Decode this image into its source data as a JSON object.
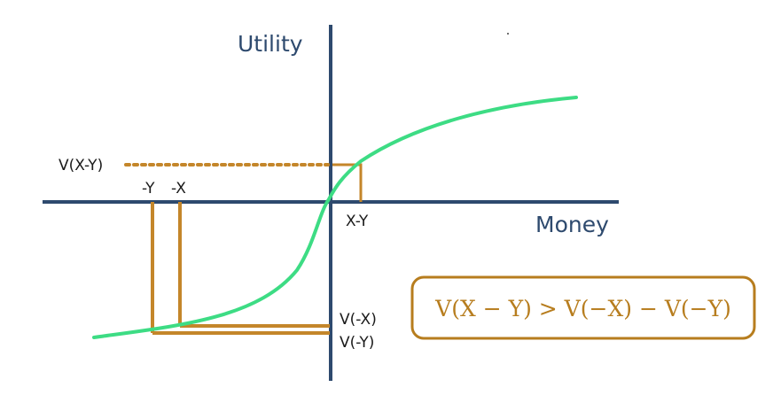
{
  "axes": {
    "y_title": "Utility",
    "x_title": "Money"
  },
  "labels": {
    "v_x_minus_y": "V(X-Y)",
    "neg_y": "-Y",
    "neg_x": "-X",
    "x_minus_y": "X-Y",
    "v_neg_x": "V(-X)",
    "v_neg_y": "V(-Y)"
  },
  "formula": "V(X − Y) > V(−X) − V(−Y)",
  "colors": {
    "axis": "#2e4a6e",
    "curve": "#3ddc84",
    "guide": "#c4862a",
    "formula_border": "#b77d1e"
  }
}
